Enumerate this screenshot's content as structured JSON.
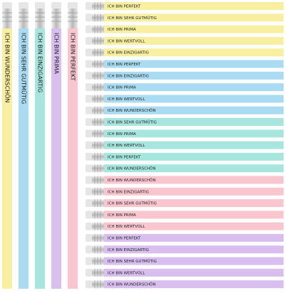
{
  "vertical_pencils": [
    "ICH BIN WUNDERSCHÖN",
    "ICH BIN SEHR GUTMÜTIG",
    "ICH BIN EINZIGARTIG",
    "ICH BIN PRIMA",
    "ICH BIN PERFEKT"
  ],
  "horizontal_pencils": [
    "ICH BIN PERFEKT",
    "ICH BIN SEHR GUTMÜTIG",
    "ICH BIN PRIMA",
    "ICH BIN WERTVOLL",
    "ICH BIN EINZIGARTIG",
    "ICH BIN PERFEKT",
    "ICH BIN EINZIGARTIG",
    "ICH BIN PRIMA",
    "ICH BIN WERTVOLL",
    "ICH BIN WUNDERSCHÖN",
    "ICH BIN SEHR GUTMÜTIG",
    "ICH BIN PRIMA",
    "ICH BIN WERTVOLL",
    "ICH BIN PERFEKT",
    "ICH BIN WUNDERSCHÖN",
    "ICH BIN WUNDERSCHÖN",
    "ICH BIN EINZIGARTIG",
    "ICH BIN SEHR GUTMÜTIG",
    "ICH BIN PRIMA",
    "ICH BIN WERTVOLL",
    "ICH BIN PERFEKT",
    "ICH BIN EINZIGARTIG",
    "ICH BIN SEHR GUTMÜTIG",
    "ICH BIN WERTVOLL",
    "ICH BIN WUNDERSCHÖN"
  ]
}
